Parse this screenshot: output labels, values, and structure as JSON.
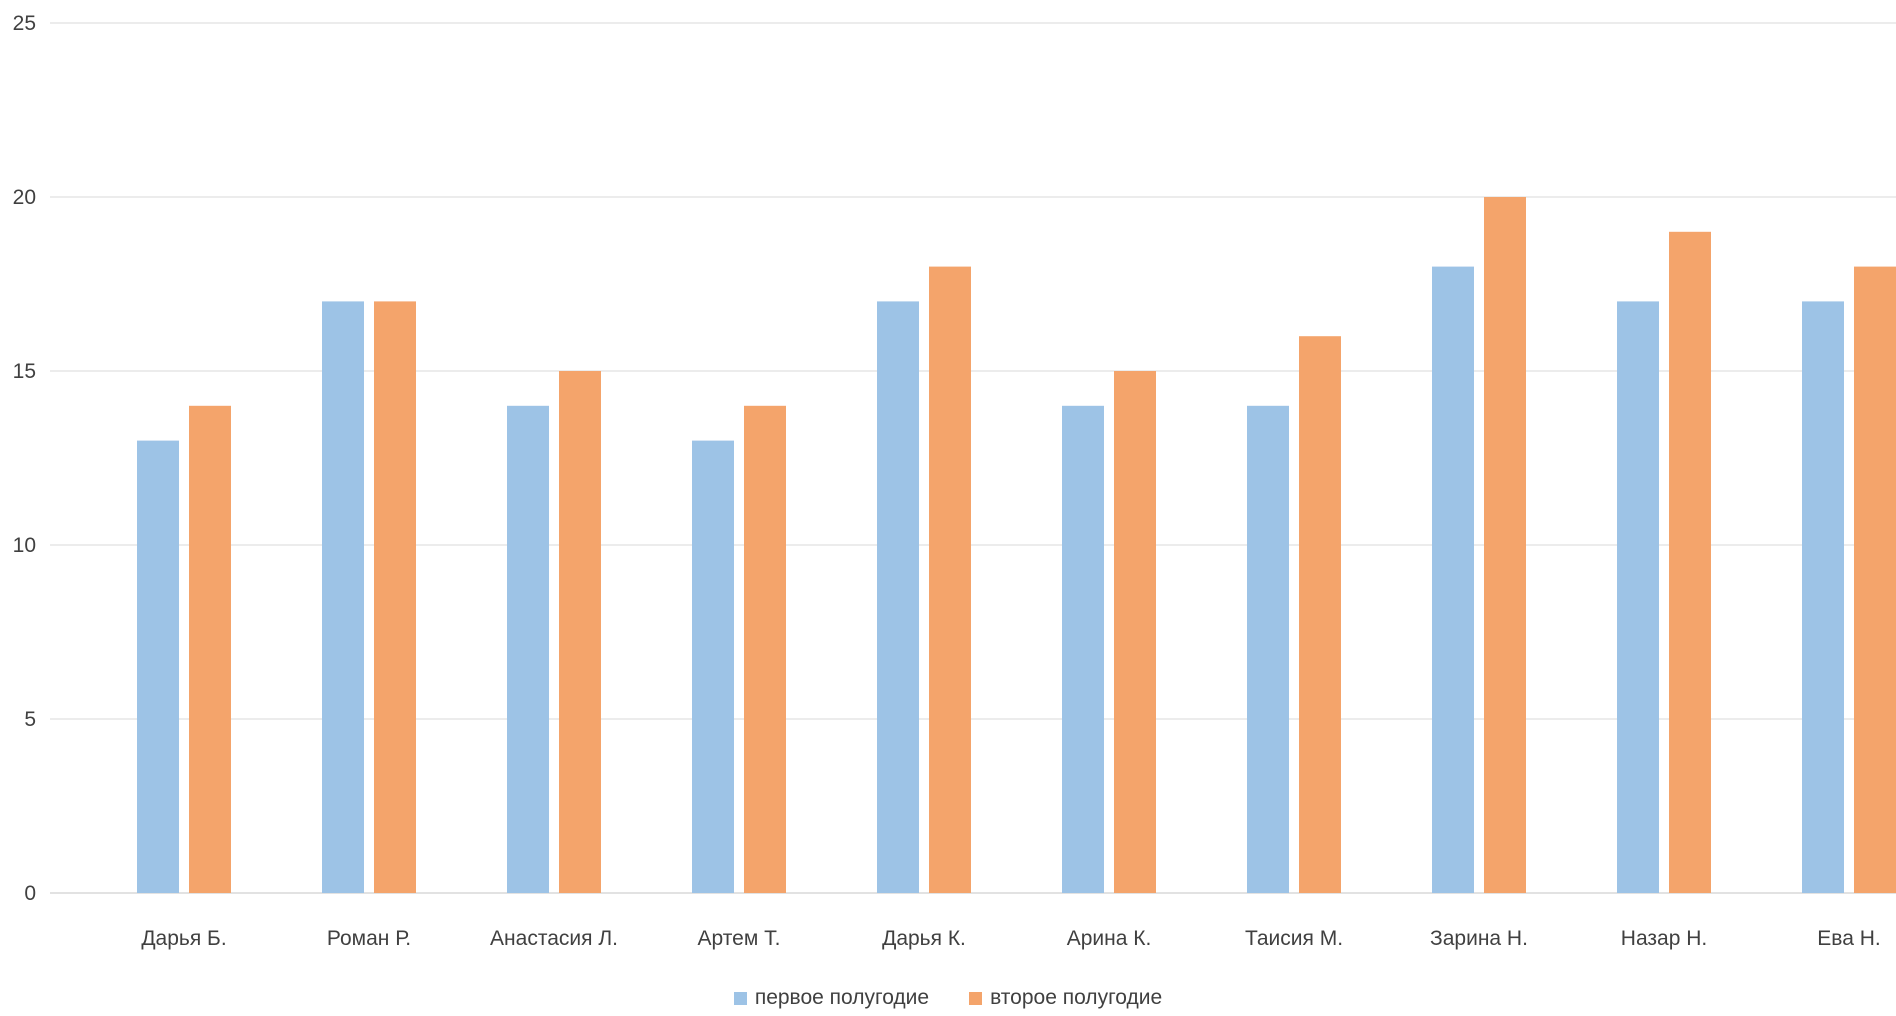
{
  "chart_data": {
    "type": "bar",
    "title": "",
    "xlabel": "",
    "ylabel": "",
    "ylim": [
      0,
      25
    ],
    "yticks": [
      "0",
      "5",
      "10",
      "15",
      "20",
      "25"
    ],
    "grid": true,
    "legend_position": "bottom",
    "categories": [
      "Дарья Б.",
      "Роман Р.",
      "Анастасия Л.",
      "Артем Т.",
      "Дарья К.",
      "Арина К.",
      "Таисия М.",
      "Зарина Н.",
      "Назар Н.",
      "Ева Н."
    ],
    "series": [
      {
        "name": "первое полугодие",
        "color": "#9dc3e6",
        "values": [
          13,
          17,
          14,
          13,
          17,
          14,
          14,
          18,
          17,
          17
        ]
      },
      {
        "name": "второе полугодие",
        "color": "#f4a46b",
        "values": [
          14,
          17,
          15,
          14,
          18,
          15,
          16,
          20,
          19,
          18
        ]
      }
    ]
  }
}
